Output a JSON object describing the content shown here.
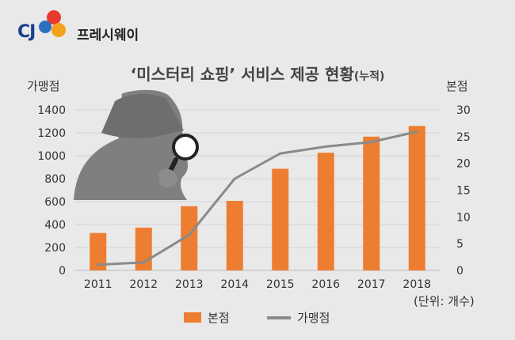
{
  "brand": {
    "logo_letters": "CJ",
    "name": "프레시웨이"
  },
  "chart_data": {
    "type": "bar",
    "title": "‘미스터리 쇼핑’ 서비스 제공 현황",
    "title_suffix": "(누적)",
    "categories": [
      "2011",
      "2012",
      "2013",
      "2014",
      "2015",
      "2016",
      "2017",
      "2018"
    ],
    "series": [
      {
        "name": "본점",
        "type": "bar",
        "axis": "right",
        "color": "#ed7d31",
        "values": [
          7,
          8,
          12,
          13,
          19,
          22,
          25,
          27
        ]
      },
      {
        "name": "가맹점",
        "type": "line",
        "axis": "left",
        "color": "#8a8a8a",
        "values": [
          50,
          70,
          310,
          800,
          1020,
          1080,
          1120,
          1210
        ]
      }
    ],
    "left_axis": {
      "label": "가맹점",
      "ylim": [
        0,
        1400
      ],
      "ticks": [
        "0",
        "200",
        "400",
        "600",
        "800",
        "1000",
        "1200",
        "1400"
      ]
    },
    "right_axis": {
      "label": "본점",
      "ylim": [
        0,
        30
      ],
      "ticks": [
        "0",
        "5",
        "10",
        "15",
        "20",
        "25",
        "30"
      ]
    },
    "unit_note": "(단위: 개수)",
    "grid": true,
    "legend_position": "bottom"
  },
  "decoration": {
    "icon": "detective-silhouette-icon",
    "accent": "#ed7d31",
    "line_color": "#8a8a8a"
  }
}
